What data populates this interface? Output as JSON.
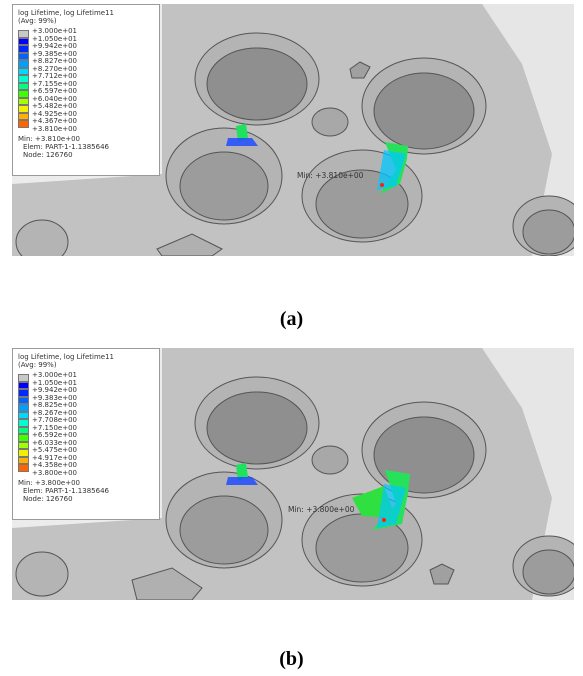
{
  "panels": [
    {
      "legend": {
        "title": "log Lifetime, log Lifetime11",
        "avg": "(Avg: 99%)",
        "ticks": [
          "+3.000e+01",
          "+1.050e+01",
          "+9.942e+00",
          "+9.385e+00",
          "+8.827e+00",
          "+8.270e+00",
          "+7.712e+00",
          "+7.155e+00",
          "+6.597e+00",
          "+6.040e+00",
          "+5.482e+00",
          "+4.925e+00",
          "+4.367e+00",
          "+3.810e+00"
        ],
        "min": "Min: +3.810e+00",
        "elem": "Elem: PART-1-1.1385646",
        "node": "Node: 126760"
      },
      "min_label": "Min: +3.810e+00",
      "caption": "(a)"
    },
    {
      "legend": {
        "title": "log Lifetime, log Lifetime11",
        "avg": "(Avg: 99%)",
        "ticks": [
          "+3.000e+01",
          "+1.050e+01",
          "+9.942e+00",
          "+9.383e+00",
          "+8.825e+00",
          "+8.267e+00",
          "+7.708e+00",
          "+7.150e+00",
          "+6.592e+00",
          "+6.033e+00",
          "+5.475e+00",
          "+4.917e+00",
          "+4.358e+00",
          "+3.800e+00"
        ],
        "min": "Min: +3.800e+00",
        "elem": "Elem: PART-1-1.1385646",
        "node": "Node: 126760"
      },
      "min_label": "Min: +3.800e+00",
      "caption": "(b)"
    }
  ],
  "colors": {
    "scale": [
      "#c8c8c8",
      "#0000ff",
      "#0028ff",
      "#0064ff",
      "#00a0ff",
      "#00d8ff",
      "#00ffd0",
      "#00ff80",
      "#40ff00",
      "#a0ff00",
      "#f0f000",
      "#ffb000",
      "#ff6400",
      "#ff0000"
    ],
    "surface": "#c2c2c2",
    "background": "#ececec"
  }
}
